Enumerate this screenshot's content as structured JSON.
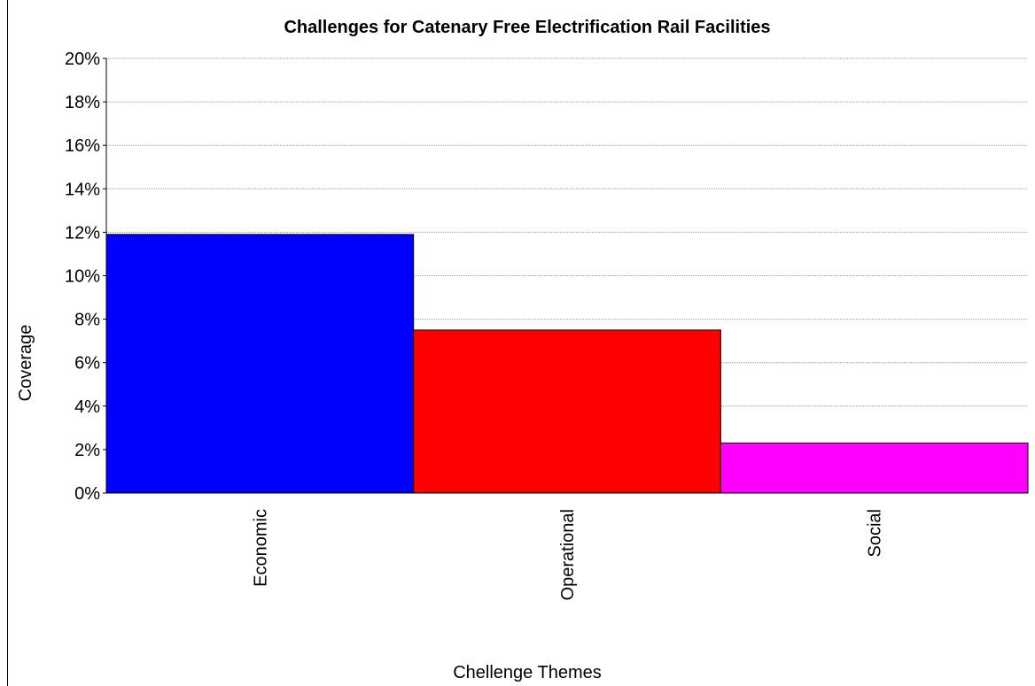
{
  "chart_data": {
    "type": "bar",
    "title": "Challenges for Catenary Free Electrification Rail Facilities",
    "xlabel": "Chellenge Themes",
    "ylabel": "Coverage",
    "categories": [
      "Economic",
      "Operational",
      "Social"
    ],
    "values": [
      11.9,
      7.5,
      2.3
    ],
    "colors": [
      "#0000ff",
      "#ff0000",
      "#ff00ff"
    ],
    "ylim": [
      0,
      20
    ],
    "yticks": [
      "0%",
      "2%",
      "4%",
      "6%",
      "8%",
      "10%",
      "12%",
      "14%",
      "16%",
      "18%",
      "20%"
    ],
    "grid": true,
    "legend": "none"
  }
}
